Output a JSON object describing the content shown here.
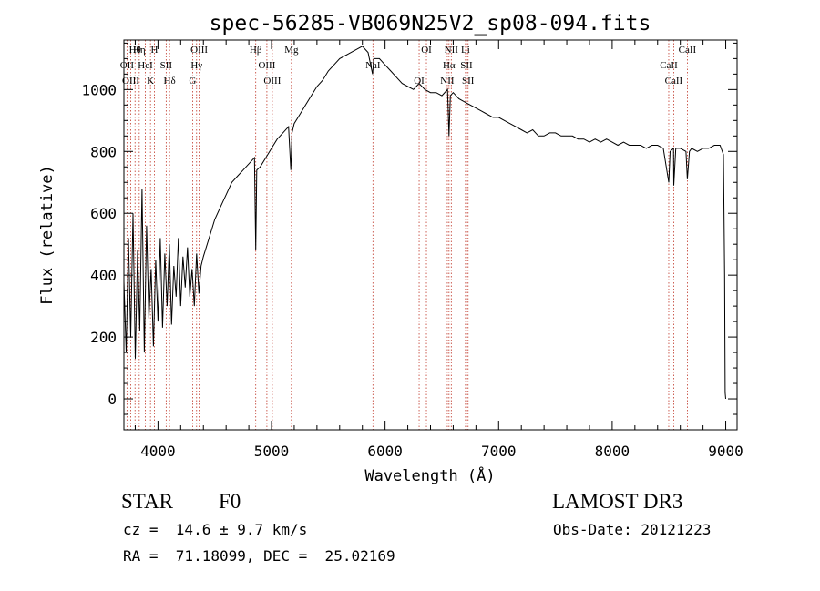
{
  "chart_data": {
    "type": "line",
    "title": "spec-56285-VB069N25V2_sp08-094.fits",
    "xlabel": "Wavelength (Å)",
    "ylabel": "Flux (relative)",
    "xlim": [
      3700,
      9100
    ],
    "ylim": [
      -100,
      1160
    ],
    "xticks": [
      4000,
      5000,
      6000,
      7000,
      8000,
      9000
    ],
    "yticks": [
      0,
      200,
      400,
      600,
      800,
      1000
    ],
    "grid": false,
    "series": [
      {
        "name": "spectrum",
        "x": [
          3700,
          3720,
          3740,
          3760,
          3780,
          3800,
          3820,
          3840,
          3860,
          3880,
          3900,
          3920,
          3940,
          3960,
          3980,
          4000,
          4020,
          4040,
          4060,
          4080,
          4100,
          4120,
          4140,
          4160,
          4180,
          4200,
          4220,
          4240,
          4260,
          4280,
          4300,
          4320,
          4340,
          4360,
          4380,
          4400,
          4450,
          4500,
          4550,
          4600,
          4650,
          4700,
          4750,
          4800,
          4850,
          4861,
          4870,
          4900,
          4950,
          5000,
          5050,
          5100,
          5150,
          5170,
          5180,
          5200,
          5250,
          5300,
          5350,
          5400,
          5450,
          5500,
          5550,
          5600,
          5650,
          5700,
          5750,
          5800,
          5850,
          5890,
          5900,
          5950,
          6000,
          6050,
          6100,
          6150,
          6200,
          6250,
          6300,
          6350,
          6400,
          6450,
          6500,
          6550,
          6563,
          6575,
          6600,
          6650,
          6700,
          6750,
          6800,
          6850,
          6900,
          6950,
          7000,
          7050,
          7100,
          7150,
          7200,
          7250,
          7300,
          7350,
          7400,
          7450,
          7500,
          7550,
          7600,
          7650,
          7700,
          7750,
          7800,
          7850,
          7900,
          7950,
          8000,
          8050,
          8100,
          8150,
          8200,
          8250,
          8300,
          8350,
          8400,
          8450,
          8498,
          8510,
          8540,
          8542,
          8560,
          8600,
          8650,
          8662,
          8680,
          8700,
          8750,
          8800,
          8850,
          8900,
          8950,
          8980,
          8990,
          8995,
          9000
        ],
        "values": [
          380,
          150,
          520,
          200,
          600,
          130,
          480,
          220,
          680,
          150,
          560,
          260,
          420,
          170,
          450,
          250,
          520,
          230,
          470,
          300,
          500,
          240,
          430,
          330,
          520,
          300,
          460,
          360,
          490,
          330,
          420,
          300,
          470,
          340,
          430,
          460,
          520,
          580,
          620,
          660,
          700,
          720,
          740,
          760,
          780,
          480,
          740,
          750,
          780,
          810,
          840,
          860,
          880,
          740,
          860,
          890,
          920,
          950,
          980,
          1010,
          1030,
          1060,
          1080,
          1100,
          1110,
          1120,
          1130,
          1140,
          1120,
          1050,
          1100,
          1100,
          1080,
          1060,
          1040,
          1020,
          1010,
          1000,
          1020,
          1000,
          990,
          990,
          980,
          1000,
          850,
          980,
          990,
          970,
          960,
          950,
          940,
          930,
          920,
          910,
          910,
          900,
          890,
          880,
          870,
          860,
          870,
          850,
          850,
          860,
          860,
          850,
          850,
          850,
          840,
          840,
          830,
          840,
          830,
          840,
          830,
          820,
          830,
          820,
          820,
          820,
          810,
          820,
          820,
          810,
          700,
          800,
          810,
          690,
          810,
          810,
          800,
          710,
          800,
          810,
          800,
          810,
          810,
          820,
          820,
          790,
          400,
          20,
          0
        ]
      }
    ],
    "lines": [
      {
        "name": "Hθ",
        "wavelength": 3798
      },
      {
        "name": "OII",
        "wavelength": 3727
      },
      {
        "name": "OIII",
        "wavelength": 3760
      },
      {
        "name": "Hη",
        "wavelength": 3835
      },
      {
        "name": "HeI",
        "wavelength": 3889
      },
      {
        "name": "K",
        "wavelength": 3934
      },
      {
        "name": "H",
        "wavelength": 3969
      },
      {
        "name": "SII",
        "wavelength": 4072
      },
      {
        "name": "Hδ",
        "wavelength": 4102
      },
      {
        "name": "OIII",
        "wavelength": 4363
      },
      {
        "name": "Hγ",
        "wavelength": 4340
      },
      {
        "name": "G",
        "wavelength": 4305
      },
      {
        "name": "Hβ",
        "wavelength": 4861
      },
      {
        "name": "OIII",
        "wavelength": 4959
      },
      {
        "name": "OIII",
        "wavelength": 5007
      },
      {
        "name": "Mg",
        "wavelength": 5175
      },
      {
        "name": "NaI",
        "wavelength": 5893
      },
      {
        "name": "OI",
        "wavelength": 6300
      },
      {
        "name": "OI",
        "wavelength": 6364
      },
      {
        "name": "Hα",
        "wavelength": 6563
      },
      {
        "name": "NII",
        "wavelength": 6548
      },
      {
        "name": "NII",
        "wavelength": 6583
      },
      {
        "name": "SII",
        "wavelength": 6717
      },
      {
        "name": "SII",
        "wavelength": 6731
      },
      {
        "name": "Li",
        "wavelength": 6708
      },
      {
        "name": "CaII",
        "wavelength": 8498
      },
      {
        "name": "CaII",
        "wavelength": 8542
      },
      {
        "name": "CaII",
        "wavelength": 8662
      }
    ]
  },
  "footer": {
    "object_class": "STAR",
    "subclass": "F0",
    "survey": "LAMOST DR3",
    "redshift": "cz =  14.6 ± 9.7 km/s",
    "obs_date": "Obs-Date: 20121223",
    "coords": "RA =  71.18099, DEC =  25.02169"
  },
  "colors": {
    "axis": "#000000",
    "spectrum": "#000000",
    "line_marker": "#c0392b"
  }
}
